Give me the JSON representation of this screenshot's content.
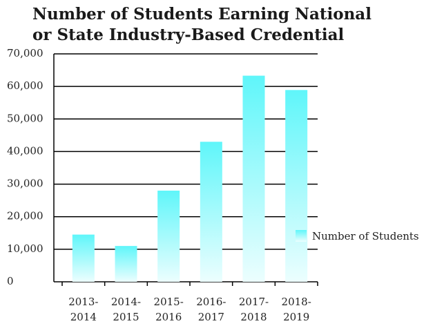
{
  "chart_data": {
    "type": "bar",
    "title": "Number of Students Earning National or State Industry-Based Credential",
    "categories": [
      "2013-2014",
      "2014-2015",
      "2015-2016",
      "2016-2017",
      "2017-2018",
      "2018-2019"
    ],
    "series": [
      {
        "name": "Number of Students",
        "color": "#5ff6fa",
        "values": [
          14500,
          11000,
          28000,
          43000,
          63300,
          58900
        ]
      }
    ],
    "ylim": [
      0,
      70000
    ],
    "yticks": [
      0,
      {
        "value": 10000,
        "label": "10,000"
      },
      {
        "value": 20000,
        "label": "20,000"
      },
      {
        "value": 30000,
        "label": "30,000"
      },
      {
        "value": 40000,
        "label": "40,000"
      },
      {
        "value": 50000,
        "label": "50,000"
      },
      {
        "value": 60000,
        "label": "60,000"
      },
      {
        "value": 70000,
        "label": "70,000"
      }
    ],
    "grid": true,
    "legend": "right"
  }
}
